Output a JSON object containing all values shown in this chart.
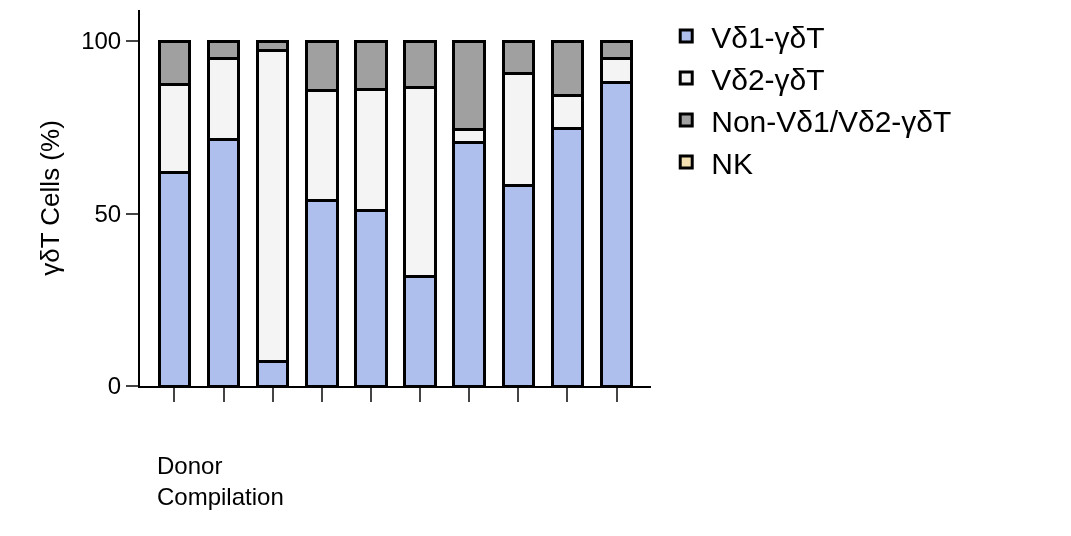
{
  "chart_data": {
    "type": "bar",
    "stacked": true,
    "ylabel": "γδT Cells (%)",
    "xlabel": "Donor Compilation",
    "categories": [
      null,
      null,
      null,
      null,
      null,
      null,
      null,
      null,
      null,
      null
    ],
    "series": [
      {
        "name": "Vδ1-γδT",
        "color": "#aebfee",
        "values": [
          62,
          71.6,
          7,
          53.7,
          50.8,
          31.7,
          70.5,
          58.1,
          74.7,
          87.9
        ]
      },
      {
        "name": "Vδ2-γδT",
        "color": "#f4f4f4",
        "values": [
          25.4,
          23.3,
          90.2,
          32,
          35.2,
          54.8,
          3.9,
          32.6,
          9.6,
          7
        ]
      },
      {
        "name": "Non-Vδ1/Vδ2-γδT",
        "color": "#a0a0a0",
        "values": [
          12.6,
          5.1,
          2.8,
          14.3,
          14,
          13.5,
          25.6,
          9.3,
          15.7,
          5.1
        ]
      },
      {
        "name": "NK",
        "color": "#f3e0b3",
        "values": [
          null,
          null,
          null,
          null,
          null,
          null,
          null,
          null,
          null,
          null
        ]
      }
    ],
    "ylim": [
      0,
      109
    ],
    "yticks": [
      0,
      50,
      100
    ],
    "grid": false,
    "legend": "top right",
    "tick_labels": "y"
  }
}
